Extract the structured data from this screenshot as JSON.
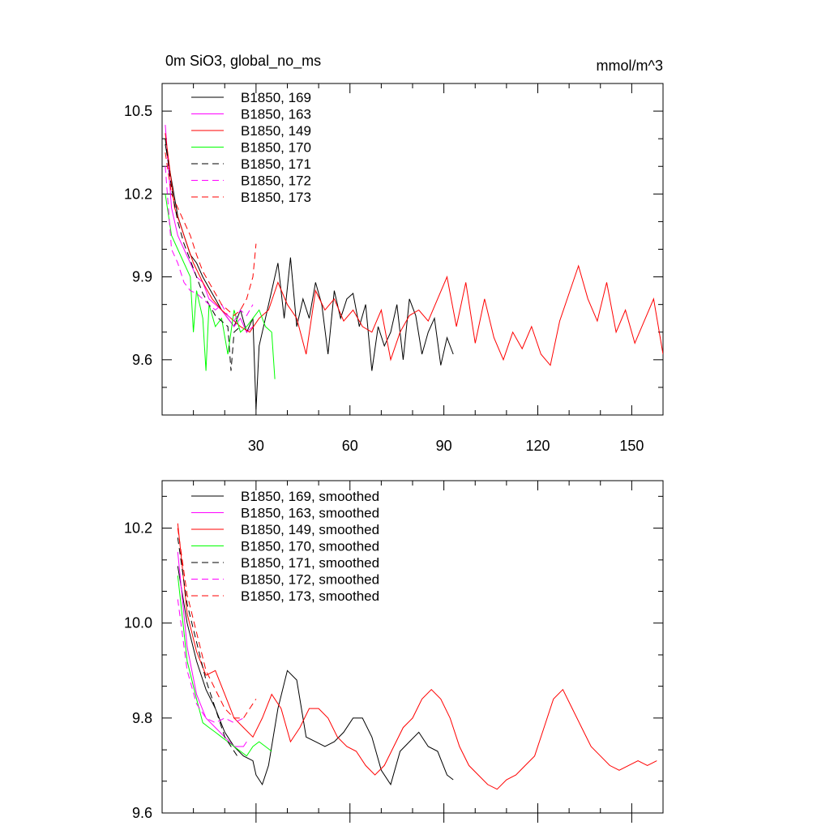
{
  "chart_data": [
    {
      "type": "line",
      "title": "0m SiO3, global_no_ms",
      "units": "mmol/m^3",
      "xlim": [
        0,
        160
      ],
      "ylim": [
        9.4,
        10.6
      ],
      "xticks": [
        30,
        60,
        90,
        120,
        150
      ],
      "yticks": [
        9.6,
        9.9,
        10.2,
        10.5
      ],
      "legend_position": "top-left",
      "series": [
        {
          "name": "B1850, 169",
          "color": "#000000",
          "dash": "solid",
          "x": [
            1,
            3,
            5,
            7,
            9,
            11,
            13,
            15,
            17,
            19,
            21,
            23,
            25,
            27,
            29,
            30,
            31,
            33,
            35,
            37,
            39,
            41,
            43,
            45,
            47,
            49,
            51,
            53,
            55,
            57,
            59,
            61,
            63,
            65,
            67,
            69,
            71,
            73,
            75,
            77,
            79,
            81,
            83,
            85,
            87,
            89,
            91,
            93
          ],
          "y": [
            10.38,
            10.25,
            10.12,
            10.05,
            9.98,
            9.95,
            9.9,
            9.86,
            9.82,
            9.78,
            9.75,
            9.72,
            9.78,
            9.7,
            9.75,
            9.42,
            9.65,
            9.75,
            9.85,
            9.95,
            9.75,
            9.97,
            9.72,
            9.82,
            9.75,
            9.88,
            9.8,
            9.62,
            9.85,
            9.75,
            9.82,
            9.84,
            9.72,
            9.8,
            9.56,
            9.72,
            9.65,
            9.7,
            9.8,
            9.6,
            9.82,
            9.76,
            9.62,
            9.7,
            9.75,
            9.58,
            9.68,
            9.62
          ]
        },
        {
          "name": "B1850, 163",
          "color": "#ff00ff",
          "dash": "solid",
          "x": [
            1,
            3,
            5,
            7,
            9,
            11,
            13,
            15,
            17,
            19,
            21,
            23,
            25,
            27,
            29
          ],
          "y": [
            10.45,
            10.15,
            10.05,
            10.0,
            9.95,
            9.9,
            9.88,
            9.82,
            9.8,
            9.78,
            9.75,
            9.72,
            9.75,
            9.7,
            9.72
          ]
        },
        {
          "name": "B1850, 149",
          "color": "#ff0000",
          "dash": "solid",
          "x": [
            1,
            4,
            7,
            10,
            13,
            16,
            19,
            22,
            25,
            28,
            31,
            34,
            37,
            40,
            43,
            46,
            49,
            52,
            55,
            58,
            61,
            64,
            67,
            70,
            73,
            76,
            79,
            82,
            85,
            88,
            91,
            94,
            97,
            100,
            103,
            106,
            109,
            112,
            115,
            118,
            121,
            124,
            127,
            130,
            133,
            136,
            139,
            142,
            145,
            148,
            151,
            154,
            157,
            160
          ],
          "y": [
            10.42,
            10.15,
            10.05,
            9.95,
            9.88,
            9.82,
            9.78,
            9.75,
            9.72,
            9.7,
            9.75,
            9.78,
            9.88,
            9.8,
            9.75,
            9.62,
            9.85,
            9.78,
            9.82,
            9.74,
            9.78,
            9.72,
            9.7,
            9.78,
            9.6,
            9.7,
            9.76,
            9.78,
            9.74,
            9.82,
            9.9,
            9.72,
            9.88,
            9.66,
            9.82,
            9.68,
            9.6,
            9.7,
            9.64,
            9.72,
            9.62,
            9.58,
            9.74,
            9.84,
            9.94,
            9.82,
            9.74,
            9.88,
            9.7,
            9.78,
            9.66,
            9.74,
            9.82,
            9.62
          ]
        },
        {
          "name": "B1850, 170",
          "color": "#00ff00",
          "dash": "solid",
          "x": [
            1,
            3,
            5,
            7,
            9,
            10,
            11,
            13,
            14,
            15,
            17,
            19,
            21,
            23,
            25,
            27,
            29,
            31,
            33,
            35,
            36
          ],
          "y": [
            10.2,
            10.05,
            10.0,
            9.95,
            9.9,
            9.7,
            9.85,
            9.75,
            9.56,
            9.8,
            9.72,
            9.75,
            9.62,
            9.78,
            9.7,
            9.72,
            9.75,
            9.78,
            9.72,
            9.7,
            9.53
          ]
        },
        {
          "name": "B1850, 171",
          "color": "#000000",
          "dash": "dashed",
          "x": [
            1,
            3,
            5,
            7,
            9,
            11,
            13,
            15,
            17,
            19,
            21,
            22,
            23,
            25
          ],
          "y": [
            10.4,
            10.22,
            10.1,
            10.02,
            9.96,
            9.9,
            9.84,
            9.8,
            9.76,
            9.74,
            9.72,
            9.56,
            9.7,
            9.72
          ]
        },
        {
          "name": "B1850, 172",
          "color": "#ff00ff",
          "dash": "dashed",
          "x": [
            1,
            3,
            5,
            7,
            9,
            11,
            13,
            15,
            17,
            19,
            21,
            23,
            25,
            27,
            29
          ],
          "y": [
            10.3,
            10.0,
            9.95,
            9.88,
            9.85,
            9.84,
            9.82,
            9.8,
            9.78,
            9.8,
            9.76,
            9.74,
            9.78,
            9.76,
            9.8
          ]
        },
        {
          "name": "B1850, 173",
          "color": "#ff0000",
          "dash": "dashed",
          "x": [
            1,
            3,
            5,
            7,
            9,
            11,
            13,
            15,
            17,
            19,
            21,
            23,
            25,
            27,
            29,
            30
          ],
          "y": [
            10.35,
            10.2,
            10.15,
            10.1,
            10.05,
            9.98,
            9.92,
            9.88,
            9.84,
            9.8,
            9.78,
            9.76,
            9.78,
            9.82,
            9.9,
            10.02
          ]
        }
      ]
    },
    {
      "type": "line",
      "title": "",
      "xlim": [
        0,
        160
      ],
      "ylim": [
        9.6,
        10.3
      ],
      "yticks": [
        9.6,
        9.8,
        10.0,
        10.2
      ],
      "legend_position": "top-left",
      "series": [
        {
          "name": "B1850, 169, smoothed",
          "color": "#000000",
          "dash": "solid",
          "x": [
            5,
            8,
            11,
            14,
            17,
            20,
            23,
            26,
            29,
            30,
            32,
            34,
            37,
            40,
            43,
            46,
            49,
            52,
            55,
            58,
            61,
            64,
            67,
            70,
            73,
            76,
            79,
            82,
            85,
            88,
            91,
            93
          ],
          "y": [
            10.12,
            10.0,
            9.92,
            9.86,
            9.82,
            9.77,
            9.74,
            9.72,
            9.71,
            9.68,
            9.66,
            9.7,
            9.82,
            9.9,
            9.88,
            9.76,
            9.75,
            9.74,
            9.75,
            9.77,
            9.8,
            9.8,
            9.76,
            9.69,
            9.66,
            9.73,
            9.75,
            9.77,
            9.74,
            9.73,
            9.68,
            9.67
          ]
        },
        {
          "name": "B1850, 163, smoothed",
          "color": "#ff00ff",
          "dash": "solid",
          "x": [
            5,
            8,
            11,
            14,
            17,
            20,
            23,
            26,
            27
          ],
          "y": [
            10.15,
            9.95,
            9.85,
            9.8,
            9.78,
            9.76,
            9.74,
            9.74,
            9.75
          ]
        },
        {
          "name": "B1850, 149, smoothed",
          "color": "#ff0000",
          "dash": "solid",
          "x": [
            5,
            8,
            11,
            14,
            17,
            20,
            23,
            26,
            29,
            32,
            35,
            38,
            41,
            44,
            47,
            50,
            53,
            56,
            59,
            62,
            65,
            68,
            71,
            74,
            77,
            80,
            83,
            86,
            89,
            92,
            95,
            98,
            101,
            104,
            107,
            110,
            113,
            116,
            119,
            122,
            125,
            128,
            131,
            134,
            137,
            140,
            143,
            146,
            149,
            152,
            155,
            158
          ],
          "y": [
            10.21,
            10.02,
            9.94,
            9.89,
            9.9,
            9.85,
            9.8,
            9.78,
            9.76,
            9.8,
            9.85,
            9.82,
            9.75,
            9.78,
            9.82,
            9.82,
            9.8,
            9.76,
            9.74,
            9.73,
            9.7,
            9.68,
            9.7,
            9.74,
            9.78,
            9.8,
            9.84,
            9.86,
            9.84,
            9.8,
            9.74,
            9.7,
            9.68,
            9.66,
            9.65,
            9.67,
            9.68,
            9.7,
            9.72,
            9.78,
            9.84,
            9.86,
            9.82,
            9.78,
            9.74,
            9.72,
            9.7,
            9.69,
            9.7,
            9.71,
            9.7,
            9.71
          ]
        },
        {
          "name": "B1850, 170, smoothed",
          "color": "#00ff00",
          "dash": "solid",
          "x": [
            5,
            8,
            11,
            13,
            15,
            17,
            19,
            21,
            23,
            25,
            27,
            29,
            31,
            33,
            35
          ],
          "y": [
            10.1,
            9.92,
            9.84,
            9.79,
            9.78,
            9.77,
            9.76,
            9.75,
            9.74,
            9.73,
            9.72,
            9.74,
            9.75,
            9.74,
            9.73
          ]
        },
        {
          "name": "B1850, 171, smoothed",
          "color": "#000000",
          "dash": "dashed",
          "x": [
            5,
            8,
            11,
            14,
            17,
            20,
            22,
            24,
            25
          ],
          "y": [
            10.18,
            10.04,
            9.96,
            9.88,
            9.82,
            9.76,
            9.74,
            9.72,
            9.72
          ]
        },
        {
          "name": "B1850, 172, smoothed",
          "color": "#ff00ff",
          "dash": "dashed",
          "x": [
            5,
            8,
            11,
            14,
            17,
            20,
            23,
            26,
            27
          ],
          "y": [
            10.05,
            9.9,
            9.83,
            9.8,
            9.79,
            9.8,
            9.79,
            9.8,
            9.8
          ]
        },
        {
          "name": "B1850, 173, smoothed",
          "color": "#ff0000",
          "dash": "dashed",
          "x": [
            5,
            8,
            11,
            14,
            17,
            20,
            23,
            26,
            28,
            30
          ],
          "y": [
            10.2,
            10.06,
            9.98,
            9.9,
            9.86,
            9.82,
            9.8,
            9.8,
            9.82,
            9.84
          ]
        }
      ]
    }
  ]
}
